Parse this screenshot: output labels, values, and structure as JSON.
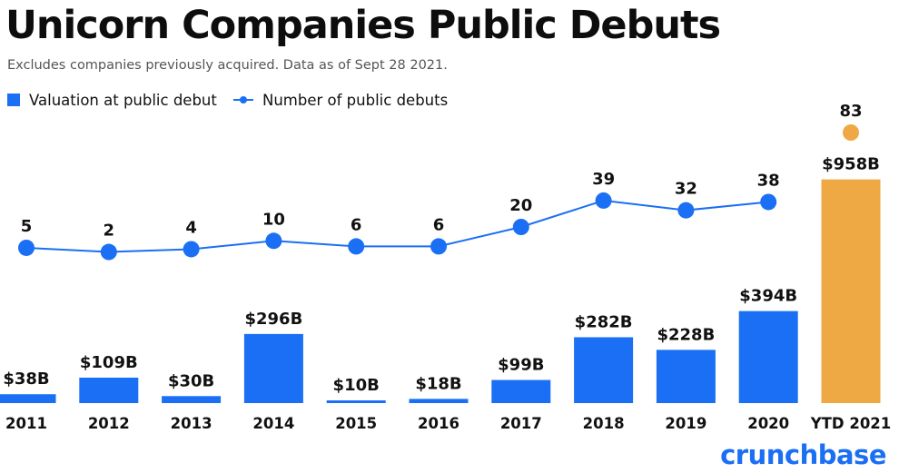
{
  "header": {
    "title": "Unicorn Companies Public Debuts",
    "subtitle": "Excludes companies previously acquired. Data as of Sept 28 2021."
  },
  "brand": {
    "name": "crunchbase",
    "color": "#1a6ff4"
  },
  "colors": {
    "primary": "#1a6ff4",
    "highlight": "#efa944",
    "text": "#111111"
  },
  "chart_data": {
    "type": "bar+line",
    "title": "Unicorn Companies Public Debuts",
    "subtitle": "Excludes companies previously acquired. Data as of Sept 28 2021.",
    "xlabel": "",
    "ylabel": "",
    "grid": false,
    "legend": "top-left",
    "categories": [
      "2011",
      "2012",
      "2013",
      "2014",
      "2015",
      "2016",
      "2017",
      "2018",
      "2019",
      "2020",
      "YTD 2021"
    ],
    "series": [
      {
        "name": "Valuation at public debut",
        "type": "bar",
        "unit": "$B",
        "values": [
          38,
          109,
          30,
          296,
          10,
          18,
          99,
          282,
          228,
          394,
          958
        ],
        "labels": [
          "$38B",
          "$109B",
          "$30B",
          "$296B",
          "$10B",
          "$18B",
          "$99B",
          "$282B",
          "$228B",
          "$394B",
          "$958B"
        ],
        "highlight_last": true
      },
      {
        "name": "Number of public debuts",
        "type": "line",
        "values": [
          5,
          2,
          4,
          10,
          6,
          6,
          20,
          39,
          32,
          38,
          83
        ],
        "labels": [
          "5",
          "2",
          "4",
          "10",
          "6",
          "6",
          "20",
          "39",
          "32",
          "38",
          "83"
        ],
        "connect_last": false
      }
    ]
  }
}
